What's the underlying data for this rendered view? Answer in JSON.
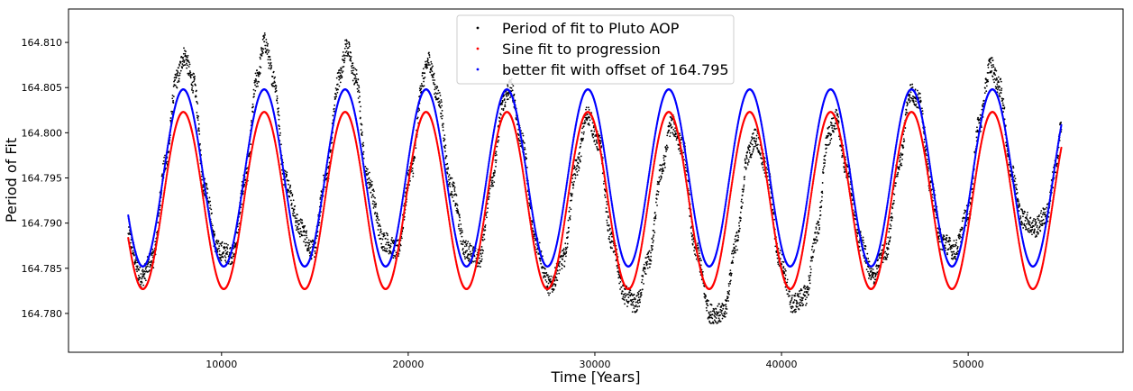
{
  "chart_data": {
    "type": "scatter",
    "title": "",
    "xlabel": "Time [Years]",
    "ylabel": "Period of Fit",
    "xlim": [
      1800,
      58300
    ],
    "ylim": [
      164.7757,
      164.8137
    ],
    "xticks": [
      {
        "value": 10000,
        "label": "10000"
      },
      {
        "value": 20000,
        "label": "20000"
      },
      {
        "value": 30000,
        "label": "30000"
      },
      {
        "value": 40000,
        "label": "40000"
      },
      {
        "value": 50000,
        "label": "50000"
      }
    ],
    "yticks": [
      {
        "value": 164.78,
        "label": "164.780"
      },
      {
        "value": 164.785,
        "label": "164.785"
      },
      {
        "value": 164.79,
        "label": "164.790"
      },
      {
        "value": 164.795,
        "label": "164.795"
      },
      {
        "value": 164.8,
        "label": "164.800"
      },
      {
        "value": 164.805,
        "label": "164.805"
      },
      {
        "value": 164.81,
        "label": "164.810"
      }
    ],
    "grid": false,
    "legend_position": "top-center",
    "x_start": 5000,
    "x_end": 55000,
    "series": [
      {
        "name": "Period of fit to Pluto AOP",
        "color": "#000000",
        "kind": "noisy",
        "points": [
          [
            5000,
            164.7885
          ],
          [
            5700,
            164.784
          ],
          [
            6300,
            164.786
          ],
          [
            7000,
            164.7965
          ],
          [
            7600,
            164.806
          ],
          [
            8000,
            164.8085
          ],
          [
            8500,
            164.8055
          ],
          [
            9100,
            164.794
          ],
          [
            9800,
            164.787
          ],
          [
            10600,
            164.7865
          ],
          [
            11300,
            164.795
          ],
          [
            11900,
            164.806
          ],
          [
            12300,
            164.81
          ],
          [
            12800,
            164.806
          ],
          [
            13400,
            164.795
          ],
          [
            14200,
            164.7895
          ],
          [
            14900,
            164.787
          ],
          [
            15600,
            164.795
          ],
          [
            16300,
            164.806
          ],
          [
            16700,
            164.8095
          ],
          [
            17200,
            164.806
          ],
          [
            17800,
            164.795
          ],
          [
            18700,
            164.788
          ],
          [
            19400,
            164.787
          ],
          [
            20200,
            164.796
          ],
          [
            20800,
            164.806
          ],
          [
            21100,
            164.808
          ],
          [
            21600,
            164.804
          ],
          [
            22300,
            164.794
          ],
          [
            23100,
            164.787
          ],
          [
            23800,
            164.786
          ],
          [
            24500,
            164.795
          ],
          [
            25100,
            164.8035
          ],
          [
            25500,
            164.805
          ],
          [
            26100,
            164.799
          ],
          [
            26800,
            164.788
          ],
          [
            27600,
            164.783
          ],
          [
            28300,
            164.786
          ],
          [
            29000,
            164.796
          ],
          [
            29600,
            164.802
          ],
          [
            30200,
            164.799
          ],
          [
            30900,
            164.788
          ],
          [
            31600,
            164.782
          ],
          [
            32200,
            164.781
          ],
          [
            32900,
            164.786
          ],
          [
            33600,
            164.796
          ],
          [
            34100,
            164.801
          ],
          [
            34700,
            164.7985
          ],
          [
            35400,
            164.787
          ],
          [
            36200,
            164.78
          ],
          [
            36900,
            164.78
          ],
          [
            37600,
            164.788
          ],
          [
            38200,
            164.7975
          ],
          [
            38600,
            164.7995
          ],
          [
            39200,
            164.796
          ],
          [
            39900,
            164.786
          ],
          [
            40600,
            164.781
          ],
          [
            41300,
            164.782
          ],
          [
            41900,
            164.789
          ],
          [
            42500,
            164.7995
          ],
          [
            42900,
            164.8015
          ],
          [
            43500,
            164.796
          ],
          [
            44200,
            164.788
          ],
          [
            44900,
            164.784
          ],
          [
            45600,
            164.787
          ],
          [
            46300,
            164.7965
          ],
          [
            46900,
            164.8045
          ],
          [
            47400,
            164.8035
          ],
          [
            48000,
            164.794
          ],
          [
            48600,
            164.788
          ],
          [
            49300,
            164.787
          ],
          [
            50000,
            164.791
          ],
          [
            50600,
            164.801
          ],
          [
            51200,
            164.8075
          ],
          [
            51700,
            164.805
          ],
          [
            52300,
            164.796
          ],
          [
            52900,
            164.7905
          ],
          [
            53600,
            164.7895
          ],
          [
            54200,
            164.791
          ],
          [
            54700,
            164.796
          ],
          [
            55000,
            164.801
          ]
        ]
      },
      {
        "name": "Sine fit to progression",
        "color": "#ff0000",
        "kind": "sine",
        "offset": 164.7925,
        "amplitude": 0.0098,
        "period": 4335,
        "phase_x": 7950
      },
      {
        "name": "better fit with offset of 164.795",
        "color": "#0000ff",
        "kind": "sine",
        "offset": 164.795,
        "amplitude": 0.0098,
        "period": 4335,
        "phase_x": 7950
      }
    ]
  }
}
